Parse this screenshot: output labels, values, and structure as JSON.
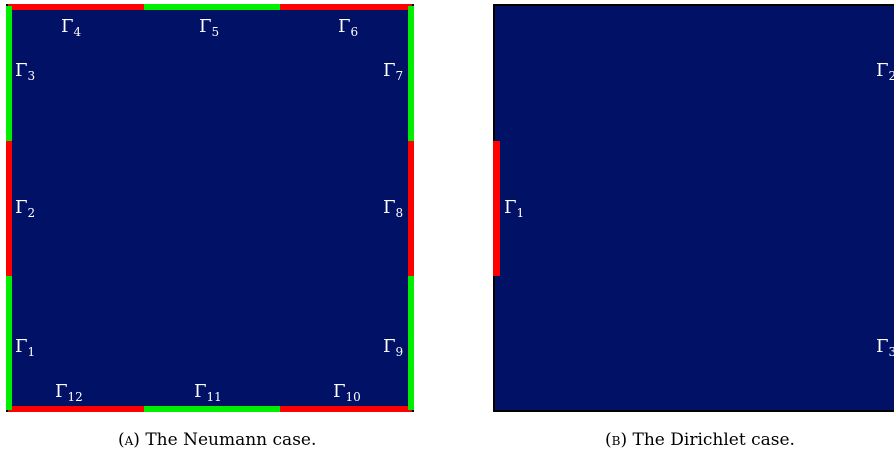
{
  "colors": {
    "domain": "#001166",
    "neumann_red": "#ff0000",
    "neumann_green": "#00ee00",
    "border": "#000000"
  },
  "panel_a": {
    "labels": {
      "g1": {
        "base": "Γ",
        "sub": "1"
      },
      "g2": {
        "base": "Γ",
        "sub": "2"
      },
      "g3": {
        "base": "Γ",
        "sub": "3"
      },
      "g4": {
        "base": "Γ",
        "sub": "4"
      },
      "g5": {
        "base": "Γ",
        "sub": "5"
      },
      "g6": {
        "base": "Γ",
        "sub": "6"
      },
      "g7": {
        "base": "Γ",
        "sub": "7"
      },
      "g8": {
        "base": "Γ",
        "sub": "8"
      },
      "g9": {
        "base": "Γ",
        "sub": "9"
      },
      "g10": {
        "base": "Γ",
        "sub": "10"
      },
      "g11": {
        "base": "Γ",
        "sub": "11"
      },
      "g12": {
        "base": "Γ",
        "sub": "12"
      }
    },
    "caption": {
      "letter": "(a)",
      "text": "The Neumann case."
    }
  },
  "panel_b": {
    "labels": {
      "g1": {
        "base": "Γ",
        "sub": "1"
      },
      "g2": {
        "base": "Γ",
        "sub": "2"
      },
      "g3": {
        "base": "Γ",
        "sub": "3"
      }
    },
    "caption": {
      "letter": "(b)",
      "text": "The Dirichlet case."
    }
  }
}
